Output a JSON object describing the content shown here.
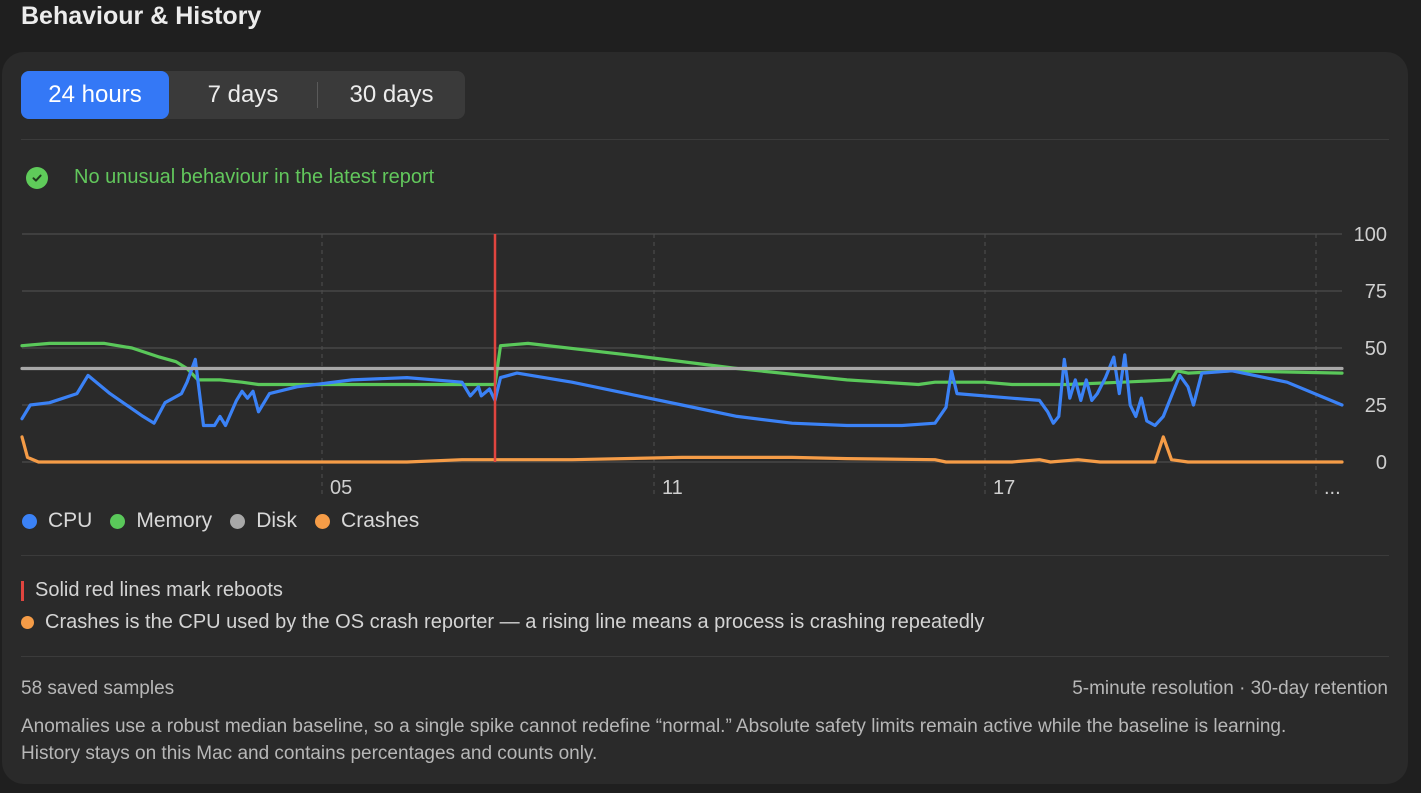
{
  "page": {
    "title": "Behaviour & History"
  },
  "tabs": [
    {
      "label": "24 hours",
      "active": true
    },
    {
      "label": "7 days",
      "active": false
    },
    {
      "label": "30 days",
      "active": false
    }
  ],
  "status": {
    "text": "No unusual behaviour in the latest report",
    "icon": "checkmark-circle-icon",
    "color": "#5fcb5a"
  },
  "chart_data": {
    "type": "line",
    "title": "",
    "ylim": [
      0,
      100
    ],
    "y_ticks": [
      "100",
      "75",
      "50",
      "25",
      "0"
    ],
    "x_ticks": [
      "05",
      "11",
      "17",
      "..."
    ],
    "grid": true,
    "legend": "bottom-left",
    "reboot_markers_x": [
      8.6
    ],
    "x_range": [
      0,
      24
    ],
    "series": [
      {
        "name": "CPU",
        "color": "#3b82f6",
        "points": [
          [
            0,
            19
          ],
          [
            0.15,
            25
          ],
          [
            0.5,
            26
          ],
          [
            1,
            30
          ],
          [
            1.2,
            38
          ],
          [
            1.6,
            30
          ],
          [
            2.2,
            20
          ],
          [
            2.4,
            17
          ],
          [
            2.6,
            26
          ],
          [
            2.9,
            30
          ],
          [
            3.0,
            35
          ],
          [
            3.15,
            45
          ],
          [
            3.3,
            16
          ],
          [
            3.5,
            16
          ],
          [
            3.6,
            20
          ],
          [
            3.7,
            16
          ],
          [
            3.9,
            27
          ],
          [
            4.0,
            31
          ],
          [
            4.1,
            28
          ],
          [
            4.2,
            31
          ],
          [
            4.3,
            22
          ],
          [
            4.5,
            30
          ],
          [
            5,
            33
          ],
          [
            6,
            36
          ],
          [
            7,
            37
          ],
          [
            8,
            35
          ],
          [
            8.15,
            29
          ],
          [
            8.3,
            33
          ],
          [
            8.35,
            29
          ],
          [
            8.5,
            32
          ],
          [
            8.6,
            27
          ],
          [
            8.7,
            37
          ],
          [
            9,
            39
          ],
          [
            10,
            35
          ],
          [
            11,
            30
          ],
          [
            12,
            25
          ],
          [
            13,
            20
          ],
          [
            14,
            17
          ],
          [
            15,
            16
          ],
          [
            16,
            16
          ],
          [
            16.6,
            17
          ],
          [
            16.8,
            24
          ],
          [
            16.9,
            40
          ],
          [
            17,
            30
          ],
          [
            18,
            28
          ],
          [
            18.5,
            27
          ],
          [
            18.65,
            22
          ],
          [
            18.75,
            17
          ],
          [
            18.85,
            20
          ],
          [
            18.95,
            45
          ],
          [
            19.05,
            28
          ],
          [
            19.15,
            36
          ],
          [
            19.25,
            27
          ],
          [
            19.35,
            36
          ],
          [
            19.45,
            27
          ],
          [
            19.55,
            30
          ],
          [
            19.7,
            37
          ],
          [
            19.85,
            46
          ],
          [
            19.95,
            30
          ],
          [
            20.05,
            47
          ],
          [
            20.15,
            25
          ],
          [
            20.25,
            20
          ],
          [
            20.35,
            28
          ],
          [
            20.45,
            18
          ],
          [
            20.6,
            16
          ],
          [
            20.75,
            20
          ],
          [
            20.9,
            29
          ],
          [
            21.05,
            38
          ],
          [
            21.2,
            33
          ],
          [
            21.3,
            25
          ],
          [
            21.45,
            39
          ],
          [
            22,
            40
          ],
          [
            23,
            35
          ],
          [
            24,
            25
          ]
        ]
      },
      {
        "name": "Memory",
        "color": "#5ac85a",
        "points": [
          [
            0,
            51
          ],
          [
            0.5,
            52
          ],
          [
            1.5,
            52
          ],
          [
            2,
            50
          ],
          [
            2.5,
            46
          ],
          [
            2.8,
            44
          ],
          [
            3.0,
            41
          ],
          [
            3.2,
            36
          ],
          [
            3.6,
            36
          ],
          [
            4.0,
            35
          ],
          [
            4.3,
            34
          ],
          [
            6,
            34
          ],
          [
            8.5,
            34
          ],
          [
            8.6,
            34
          ],
          [
            8.7,
            51
          ],
          [
            9.2,
            52
          ],
          [
            11,
            47
          ],
          [
            13,
            41
          ],
          [
            15,
            36
          ],
          [
            16.3,
            34
          ],
          [
            16.6,
            35
          ],
          [
            17.5,
            35
          ],
          [
            18,
            34
          ],
          [
            19,
            34
          ],
          [
            20,
            35
          ],
          [
            20.9,
            36
          ],
          [
            21,
            40
          ],
          [
            21.2,
            39
          ],
          [
            22,
            40
          ],
          [
            24,
            39
          ]
        ]
      },
      {
        "name": "Disk",
        "color": "#a8a8a8",
        "points": [
          [
            0,
            41
          ],
          [
            24,
            41
          ]
        ]
      },
      {
        "name": "Crashes",
        "color": "#f59c47",
        "points": [
          [
            0,
            11
          ],
          [
            0.1,
            2
          ],
          [
            0.3,
            0
          ],
          [
            5,
            0
          ],
          [
            6,
            0
          ],
          [
            7,
            0
          ],
          [
            8,
            1
          ],
          [
            8.6,
            1
          ],
          [
            10,
            1
          ],
          [
            12,
            2
          ],
          [
            14,
            2
          ],
          [
            15,
            1.5
          ],
          [
            16.6,
            1
          ],
          [
            16.8,
            0
          ],
          [
            18,
            0
          ],
          [
            18.5,
            1
          ],
          [
            18.7,
            0
          ],
          [
            19.2,
            1
          ],
          [
            19.6,
            0
          ],
          [
            20.6,
            0
          ],
          [
            20.75,
            11
          ],
          [
            20.9,
            1
          ],
          [
            21.2,
            0
          ],
          [
            22,
            0
          ],
          [
            24,
            0
          ]
        ]
      }
    ]
  },
  "legend": [
    {
      "label": "CPU",
      "color": "#3b82f6"
    },
    {
      "label": "Memory",
      "color": "#5ac85a"
    },
    {
      "label": "Disk",
      "color": "#a8a8a8"
    },
    {
      "label": "Crashes",
      "color": "#f59c47"
    }
  ],
  "notes": {
    "reboot": "Solid red lines mark reboots",
    "crashes": "Crashes is the CPU used by the OS crash reporter — a rising line means a process is crashing repeatedly"
  },
  "footer": {
    "samples": "58 saved samples",
    "resolution": "5-minute resolution · 30-day retention",
    "description": "Anomalies use a robust median baseline, so a single spike cannot redefine “normal.” Absolute safety limits remain active while the baseline is learning. History stays on this Mac and contains percentages and counts only."
  }
}
